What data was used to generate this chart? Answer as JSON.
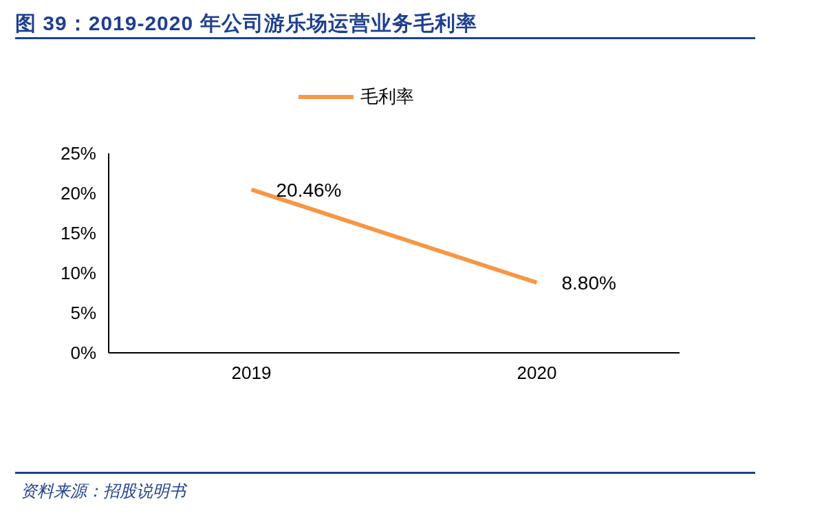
{
  "chart_data": {
    "type": "line",
    "title": "图 39：2019-2020 年公司游乐场运营业务毛利率",
    "categories": [
      "2019",
      "2020"
    ],
    "series": [
      {
        "name": "毛利率",
        "color": "#f79646",
        "values": [
          20.46,
          8.8
        ],
        "value_labels": [
          "20.46%",
          "8.80%"
        ]
      }
    ],
    "ylim": [
      0,
      25
    ],
    "yticks": [
      {
        "value": 0,
        "label": "0%"
      },
      {
        "value": 5,
        "label": "5%"
      },
      {
        "value": 10,
        "label": "10%"
      },
      {
        "value": 15,
        "label": "15%"
      },
      {
        "value": 20,
        "label": "20%"
      },
      {
        "value": 25,
        "label": "25%"
      }
    ],
    "grid": false,
    "legend": "top",
    "marker": "none",
    "line_style": "solid",
    "annotations": [
      "资料来源：招股说明书"
    ]
  }
}
